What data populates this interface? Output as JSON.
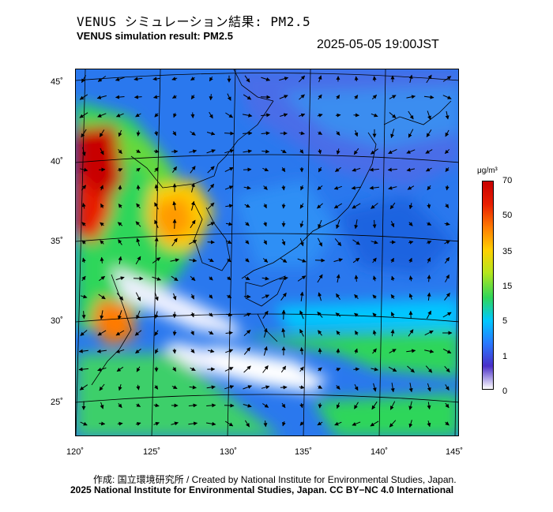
{
  "header": {
    "title_ja": "VENUS シミュレーション結果: PM2.5",
    "title_en": "VENUS simulation result: PM2.5",
    "timestamp": "2025-05-05 19:00JST"
  },
  "map": {
    "lon_ticks": [
      "120˚",
      "125˚",
      "130˚",
      "135˚",
      "140˚",
      "145˚"
    ],
    "lat_ticks": [
      "45˚",
      "40˚",
      "35˚",
      "30˚",
      "25˚"
    ],
    "overlay": "wind-vectors"
  },
  "colorbar": {
    "unit": "μg/m³",
    "labels": [
      "70",
      "50",
      "35",
      "15",
      "5",
      "1",
      "0"
    ],
    "colors": [
      "#ffffff",
      "#4a2fc8",
      "#2979ff",
      "#00c8ff",
      "#2fd65a",
      "#b5e61d",
      "#ffd000",
      "#ff7a00",
      "#e81e00",
      "#c80000"
    ]
  },
  "footer": {
    "credit": "作成: 国立環境研究所 / Created by National Institute for Environmental Studies, Japan.",
    "license": "2025 National Institute for Environmental Studies, Japan. CC BY−NC 4.0 International"
  }
}
